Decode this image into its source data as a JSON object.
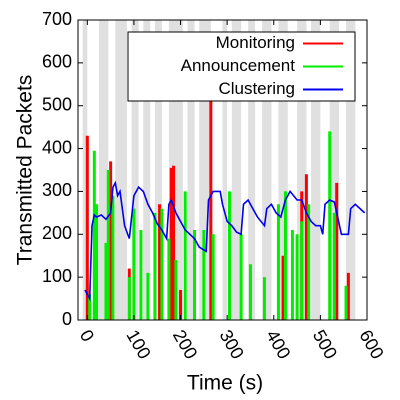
{
  "chart_data": {
    "type": "line",
    "xlabel": "Time (s)",
    "ylabel": "Transmitted Packets",
    "xlim": [
      -20,
      600
    ],
    "ylim": [
      0,
      700
    ],
    "xticks": [
      0,
      100,
      200,
      300,
      400,
      500,
      600
    ],
    "yticks": [
      0,
      100,
      200,
      300,
      400,
      500,
      600,
      700
    ],
    "band_color": "#e0e0e0",
    "bands": [
      [
        -10,
        0
      ],
      [
        25,
        45
      ],
      [
        60,
        85
      ],
      [
        95,
        110
      ],
      [
        120,
        135
      ],
      [
        145,
        160
      ],
      [
        175,
        205
      ],
      [
        215,
        230
      ],
      [
        240,
        265
      ],
      [
        290,
        300
      ],
      [
        310,
        330
      ],
      [
        345,
        360
      ],
      [
        375,
        395
      ],
      [
        410,
        430
      ],
      [
        450,
        470
      ],
      [
        480,
        500
      ],
      [
        520,
        540
      ],
      [
        555,
        575
      ]
    ],
    "legend": "upper right",
    "series": [
      {
        "name": "Monitoring",
        "color": "#ff0000",
        "style": "impulse",
        "x": [
          0,
          50,
          90,
          155,
          180,
          185,
          200,
          265,
          305,
          420,
          460,
          470,
          535,
          560
        ],
        "values": [
          430,
          370,
          120,
          270,
          355,
          360,
          70,
          550,
          140,
          150,
          300,
          340,
          320,
          110
        ]
      },
      {
        "name": "Announcement",
        "color": "#00ee00",
        "style": "impulse",
        "x": [
          5,
          15,
          20,
          40,
          45,
          55,
          90,
          100,
          115,
          130,
          145,
          160,
          175,
          190,
          210,
          230,
          250,
          270,
          305,
          330,
          350,
          380,
          410,
          425,
          440,
          450,
          460,
          475,
          520,
          530,
          555
        ],
        "values": [
          60,
          395,
          270,
          180,
          350,
          290,
          100,
          260,
          210,
          110,
          250,
          260,
          190,
          140,
          300,
          210,
          210,
          200,
          300,
          200,
          130,
          100,
          270,
          300,
          210,
          200,
          230,
          270,
          440,
          250,
          80
        ]
      },
      {
        "name": "Clustering",
        "color": "#0000ee",
        "style": "line",
        "x": [
          -5,
          0,
          5,
          10,
          15,
          20,
          30,
          40,
          50,
          55,
          60,
          65,
          70,
          80,
          90,
          100,
          110,
          120,
          130,
          140,
          150,
          160,
          170,
          175,
          180,
          190,
          200,
          210,
          220,
          230,
          240,
          255,
          260,
          270,
          285,
          290,
          300,
          310,
          320,
          330,
          335,
          345,
          355,
          365,
          380,
          385,
          395,
          405,
          415,
          425,
          435,
          450,
          460,
          470,
          480,
          490,
          500,
          505,
          510,
          520,
          530,
          545,
          560,
          565,
          575,
          585,
          595
        ],
        "values": [
          70,
          60,
          50,
          220,
          245,
          240,
          245,
          235,
          250,
          310,
          320,
          290,
          300,
          220,
          190,
          290,
          310,
          300,
          270,
          250,
          225,
          210,
          190,
          270,
          280,
          250,
          230,
          210,
          200,
          190,
          170,
          160,
          280,
          300,
          300,
          270,
          230,
          220,
          205,
          200,
          270,
          280,
          260,
          240,
          220,
          260,
          270,
          250,
          240,
          280,
          300,
          280,
          280,
          250,
          230,
          220,
          220,
          200,
          270,
          280,
          275,
          200,
          200,
          260,
          270,
          260,
          250
        ]
      }
    ]
  }
}
